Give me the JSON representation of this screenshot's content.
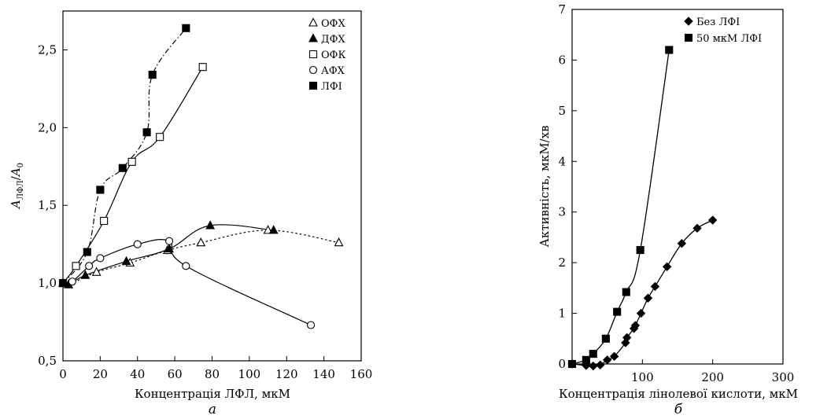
{
  "chart_data": [
    {
      "type": "line",
      "panel_label": "а",
      "xlabel": "Концентрація ЛФЛ, мкМ",
      "ylabel_main": "A",
      "ylabel_sub": "ЛФЛ",
      "ylabel_den": "A",
      "ylabel_den_sub": "0",
      "xlim": [
        0,
        160
      ],
      "ylim": [
        0.5,
        2.75
      ],
      "x_ticks": [
        "0",
        "20",
        "40",
        "60",
        "80",
        "100",
        "120",
        "140",
        "160"
      ],
      "y_ticks": [
        "0,5",
        "1,0",
        "1,5",
        "2,0",
        "2,5"
      ],
      "legend_position": "top-right",
      "series": [
        {
          "name": "ОФХ",
          "marker": "triangle-open",
          "line": "dotted",
          "x": [
            0,
            3,
            18,
            36,
            56,
            74,
            110,
            148
          ],
          "y": [
            1.0,
            0.99,
            1.07,
            1.13,
            1.21,
            1.26,
            1.34,
            1.26
          ]
        },
        {
          "name": "ДФХ",
          "marker": "triangle-filled",
          "line": "solid",
          "x": [
            0,
            3,
            12,
            34,
            57,
            79,
            113
          ],
          "y": [
            1.0,
            0.99,
            1.05,
            1.14,
            1.22,
            1.37,
            1.34
          ]
        },
        {
          "name": "ОФК",
          "marker": "square-open",
          "line": "solid",
          "x": [
            0,
            7,
            22,
            37,
            52,
            75
          ],
          "y": [
            1.0,
            1.11,
            1.4,
            1.78,
            1.94,
            2.39
          ]
        },
        {
          "name": "АФХ",
          "marker": "circle-open",
          "line": "solid",
          "x": [
            0,
            5,
            14,
            20,
            40,
            57,
            66,
            133
          ],
          "y": [
            1.0,
            1.01,
            1.11,
            1.16,
            1.25,
            1.27,
            1.11,
            0.73
          ]
        },
        {
          "name": "ЛФІ",
          "marker": "square-filled",
          "line": "dashdot",
          "x": [
            0,
            13,
            20,
            32,
            45,
            48,
            66
          ],
          "y": [
            1.0,
            1.2,
            1.6,
            1.74,
            1.97,
            2.34,
            2.64
          ]
        }
      ]
    },
    {
      "type": "line",
      "panel_label": "б",
      "xlabel": "Концентрація лінолевої кислоти, мкМ",
      "ylabel": "Активність, мкМ/хв",
      "xlim": [
        0,
        300
      ],
      "ylim": [
        0,
        7
      ],
      "x_ticks": [
        "100",
        "200",
        "300"
      ],
      "y_ticks": [
        "0",
        "1",
        "2",
        "3",
        "4",
        "5",
        "6",
        "7"
      ],
      "legend_position": "top-right",
      "series": [
        {
          "name": "Без ЛФІ",
          "marker": "diamond-filled",
          "line": "solid",
          "x": [
            0,
            20,
            30,
            40,
            50,
            60,
            76,
            78,
            88,
            90,
            98,
            108,
            118,
            135,
            156,
            178,
            200
          ],
          "y": [
            0,
            -0.03,
            -0.04,
            -0.02,
            0.08,
            0.15,
            0.42,
            0.52,
            0.7,
            0.76,
            1.0,
            1.3,
            1.53,
            1.92,
            2.38,
            2.68,
            2.84
          ]
        },
        {
          "name": "50 мкМ ЛФІ",
          "marker": "square-filled",
          "line": "solid",
          "x": [
            0,
            20,
            30,
            48,
            64,
            77,
            97,
            138
          ],
          "y": [
            0,
            0.08,
            0.2,
            0.5,
            1.03,
            1.42,
            2.25,
            6.2
          ]
        }
      ]
    }
  ]
}
